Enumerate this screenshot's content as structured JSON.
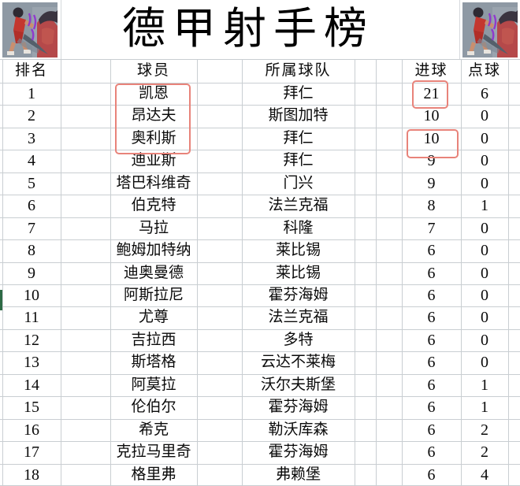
{
  "title": "德甲射手榜",
  "table": {
    "headers": [
      "排名",
      "球员",
      "所属球队",
      "进球",
      "点球"
    ],
    "rows": [
      {
        "rank": "1",
        "player": "凯恩",
        "team": "拜仁",
        "goals": "21",
        "penalties": "6"
      },
      {
        "rank": "2",
        "player": "昂达夫",
        "team": "斯图加特",
        "goals": "10",
        "penalties": "0"
      },
      {
        "rank": "3",
        "player": "奥利斯",
        "team": "拜仁",
        "goals": "10",
        "penalties": "0"
      },
      {
        "rank": "4",
        "player": "迪亚斯",
        "team": "拜仁",
        "goals": "9",
        "penalties": "0"
      },
      {
        "rank": "5",
        "player": "塔巴科维奇",
        "team": "门兴",
        "goals": "9",
        "penalties": "0"
      },
      {
        "rank": "6",
        "player": "伯克特",
        "team": "法兰克福",
        "goals": "8",
        "penalties": "1"
      },
      {
        "rank": "7",
        "player": "马拉",
        "team": "科隆",
        "goals": "7",
        "penalties": "0"
      },
      {
        "rank": "8",
        "player": "鲍姆加特纳",
        "team": "莱比锡",
        "goals": "6",
        "penalties": "0"
      },
      {
        "rank": "9",
        "player": "迪奥曼德",
        "team": "莱比锡",
        "goals": "6",
        "penalties": "0"
      },
      {
        "rank": "10",
        "player": "阿斯拉尼",
        "team": "霍芬海姆",
        "goals": "6",
        "penalties": "0"
      },
      {
        "rank": "11",
        "player": "尤尊",
        "team": "法兰克福",
        "goals": "6",
        "penalties": "0"
      },
      {
        "rank": "12",
        "player": "吉拉西",
        "team": "多特",
        "goals": "6",
        "penalties": "0"
      },
      {
        "rank": "13",
        "player": "斯塔格",
        "team": "云达不莱梅",
        "goals": "6",
        "penalties": "0"
      },
      {
        "rank": "14",
        "player": "阿莫拉",
        "team": "沃尔夫斯堡",
        "goals": "6",
        "penalties": "1"
      },
      {
        "rank": "15",
        "player": "伦伯尔",
        "team": "霍芬海姆",
        "goals": "6",
        "penalties": "1"
      },
      {
        "rank": "16",
        "player": "希克",
        "team": "勒沃库森",
        "goals": "6",
        "penalties": "2"
      },
      {
        "rank": "17",
        "player": "克拉马里奇",
        "team": "霍芬海姆",
        "goals": "6",
        "penalties": "2"
      },
      {
        "rank": "18",
        "player": "格里弗",
        "team": "弗赖堡",
        "goals": "6",
        "penalties": "4"
      }
    ]
  },
  "highlights": {
    "player_box_rows": "1-3",
    "boxed_goal_values": [
      {
        "row": "1",
        "value": "21"
      },
      {
        "row": "3",
        "value": "10"
      }
    ],
    "accent_color": "#e8837a"
  }
}
